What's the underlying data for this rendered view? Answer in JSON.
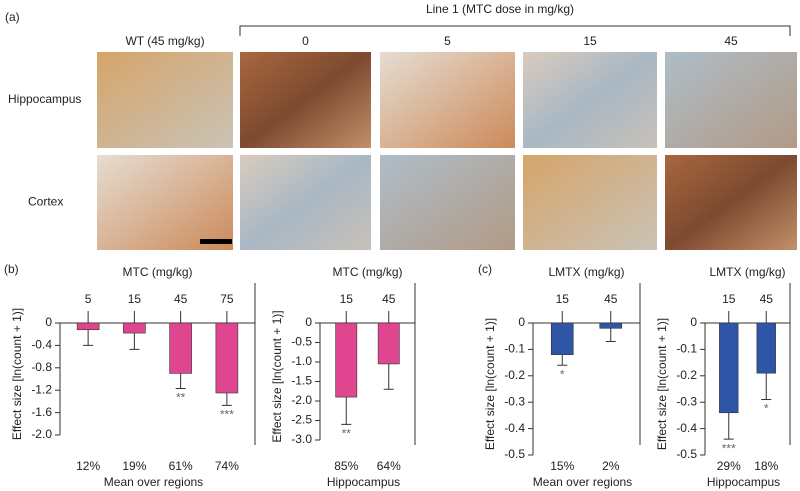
{
  "panel_a": {
    "label": "(a)",
    "group_title": "Line 1 (MTC dose in mg/kg)",
    "columns": [
      "WT (45 mg/kg)",
      "0",
      "5",
      "15",
      "45"
    ],
    "rows": [
      "Hippocampus",
      "Cortex"
    ]
  },
  "chart_data": [
    {
      "type": "bar",
      "panel_label": "(b)",
      "title": "MTC (mg/kg)",
      "categories": [
        "5",
        "15",
        "45",
        "75"
      ],
      "values": [
        -0.12,
        -0.18,
        -0.9,
        -1.25
      ],
      "errors": [
        0.28,
        0.29,
        0.27,
        0.22
      ],
      "color": "#e0468f",
      "significance": [
        null,
        null,
        "**",
        "***"
      ],
      "percent_labels": [
        "12%",
        "19%",
        "61%",
        "74%"
      ],
      "xlabel": "Mean over regions",
      "ylabel": "Effect size [ln(count + 1)]",
      "ylim": [
        -2.0,
        0
      ],
      "yticks": [
        0,
        -0.4,
        -0.8,
        -1.2,
        -1.6,
        {
          "value": -2.0,
          "label": "-2.0"
        }
      ]
    },
    {
      "type": "bar",
      "title": "MTC (mg/kg)",
      "categories": [
        "15",
        "45"
      ],
      "values": [
        -1.9,
        -1.05
      ],
      "errors": [
        0.7,
        0.65
      ],
      "color": "#e0468f",
      "significance": [
        "**",
        null
      ],
      "percent_labels": [
        "85%",
        "64%"
      ],
      "xlabel": "Hippocampus",
      "ylabel": "Effect size [ln(count + 1)]",
      "ylim": [
        -3.0,
        0
      ],
      "yticks": [
        0,
        -0.5,
        {
          "value": -1.0,
          "label": "-1.0"
        },
        -1.5,
        {
          "value": -2.0,
          "label": "-2.0"
        },
        -2.5,
        {
          "value": -3.0,
          "label": "-3.0"
        }
      ]
    },
    {
      "type": "bar",
      "panel_label": "(c)",
      "title": "LMTX (mg/kg)",
      "categories": [
        "15",
        "45"
      ],
      "values": [
        -0.12,
        -0.02
      ],
      "errors": [
        0.04,
        0.05
      ],
      "color": "#2f56a6",
      "significance": [
        "*",
        null
      ],
      "percent_labels": [
        "15%",
        "2%"
      ],
      "xlabel": "Mean over regions",
      "ylabel": "Effect size [ln(count + 1)]",
      "ylim": [
        -0.5,
        0
      ],
      "yticks": [
        0,
        -0.1,
        -0.2,
        -0.3,
        -0.4,
        -0.5
      ]
    },
    {
      "type": "bar",
      "title": "LMTX (mg/kg)",
      "categories": [
        "15",
        "45"
      ],
      "values": [
        -0.34,
        -0.19
      ],
      "errors": [
        0.1,
        0.1
      ],
      "color": "#2f56a6",
      "significance": [
        "***",
        "*"
      ],
      "percent_labels": [
        "29%",
        "18%"
      ],
      "xlabel": "Hippocampus",
      "ylabel": "Effect size [ln(count + 1)]",
      "ylim": [
        -0.5,
        0
      ],
      "yticks": [
        0,
        -0.1,
        -0.2,
        -0.3,
        -0.4,
        -0.5
      ]
    }
  ]
}
